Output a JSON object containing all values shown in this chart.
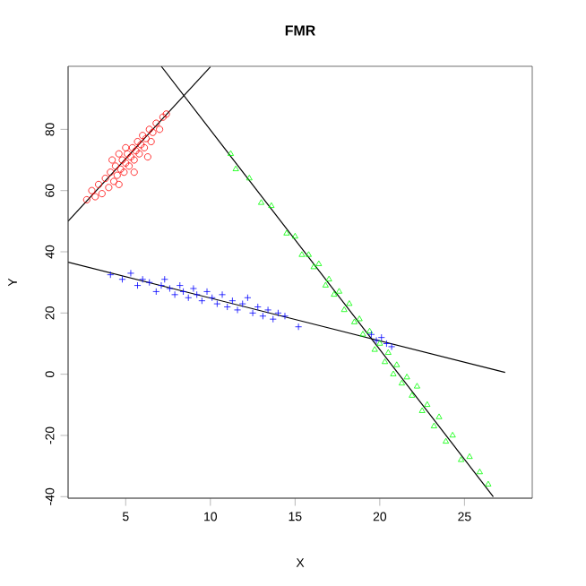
{
  "chart_data": {
    "type": "scatter",
    "title": "FMR",
    "xlabel": "X",
    "ylabel": "Y",
    "xlim": [
      1.6,
      29.0
    ],
    "ylim": [
      -40.5,
      100.6
    ],
    "xticks": [
      5,
      10,
      15,
      20,
      25
    ],
    "yticks": [
      -40,
      -20,
      0,
      20,
      40,
      60,
      80
    ],
    "series": [
      {
        "color": "#ff0000",
        "marker": "circle",
        "x": [
          2.7,
          3.0,
          3.2,
          3.4,
          3.6,
          3.8,
          4.0,
          4.1,
          4.3,
          4.4,
          4.5,
          4.6,
          4.7,
          4.8,
          4.9,
          5.0,
          5.1,
          5.2,
          5.3,
          5.4,
          5.5,
          5.6,
          5.7,
          5.8,
          5.9,
          6.0,
          6.1,
          6.2,
          6.4,
          6.5,
          6.6,
          6.8,
          7.0,
          7.2,
          7.4,
          5.0,
          4.2,
          6.3,
          5.5,
          4.6
        ],
        "values": [
          57,
          60,
          58,
          62,
          59,
          64,
          61,
          66,
          63,
          68,
          65,
          62,
          67,
          70,
          66,
          69,
          72,
          68,
          71,
          74,
          70,
          73,
          76,
          72,
          75,
          78,
          74,
          77,
          80,
          76,
          79,
          82,
          80,
          84,
          85,
          74,
          70,
          71,
          66,
          72
        ]
      },
      {
        "color": "#00ff00",
        "marker": "triangle",
        "x": [
          11.2,
          11.5,
          12.3,
          13.0,
          13.6,
          14.5,
          15.0,
          15.4,
          15.8,
          16.1,
          16.4,
          16.8,
          17.0,
          17.3,
          17.6,
          17.9,
          18.2,
          18.5,
          18.8,
          19.0,
          19.4,
          19.7,
          20.0,
          20.3,
          20.5,
          20.8,
          21.0,
          21.3,
          21.6,
          21.9,
          22.2,
          22.5,
          22.8,
          23.2,
          23.5,
          23.9,
          24.3,
          24.8,
          25.3,
          25.9,
          26.4
        ],
        "values": [
          72,
          67,
          64,
          56,
          55,
          46,
          45,
          39,
          39,
          35,
          36,
          29,
          31,
          26,
          27,
          21,
          23,
          17,
          18,
          13,
          14,
          8,
          10,
          4,
          7,
          0,
          3,
          -3,
          -1,
          -7,
          -4,
          -12,
          -10,
          -17,
          -14,
          -22,
          -20,
          -28,
          -27,
          -32,
          -36
        ]
      },
      {
        "color": "#0000ff",
        "marker": "cross",
        "x": [
          4.1,
          4.8,
          5.3,
          5.7,
          6.0,
          6.4,
          6.8,
          7.1,
          7.3,
          7.6,
          7.9,
          8.2,
          8.4,
          8.7,
          9.0,
          9.2,
          9.5,
          9.8,
          10.1,
          10.4,
          10.7,
          11.0,
          11.3,
          11.6,
          11.9,
          12.2,
          12.5,
          12.8,
          13.1,
          13.4,
          13.7,
          14.0,
          14.4,
          15.2,
          19.5,
          19.8,
          20.1,
          20.4,
          20.7
        ],
        "values": [
          32.5,
          31,
          33,
          29,
          31,
          30,
          27,
          29,
          31,
          28,
          26,
          29,
          27,
          25,
          28,
          26,
          24,
          27,
          25,
          23,
          26,
          22,
          24,
          21,
          23,
          25,
          20,
          22,
          19,
          21,
          18,
          20,
          19,
          15.5,
          13,
          11,
          12,
          10,
          9
        ]
      },
      {
        "type": "line",
        "color": "#000000",
        "marker": "none",
        "x": [
          1.6,
          10.0
        ],
        "values": [
          50.0,
          100.4
        ]
      },
      {
        "type": "line",
        "color": "#000000",
        "marker": "none",
        "x": [
          7.1,
          26.7
        ],
        "values": [
          100.6,
          -40.0
        ]
      },
      {
        "type": "line",
        "color": "#000000",
        "marker": "none",
        "x": [
          1.6,
          27.4
        ],
        "values": [
          36.6,
          0.6
        ]
      }
    ]
  }
}
